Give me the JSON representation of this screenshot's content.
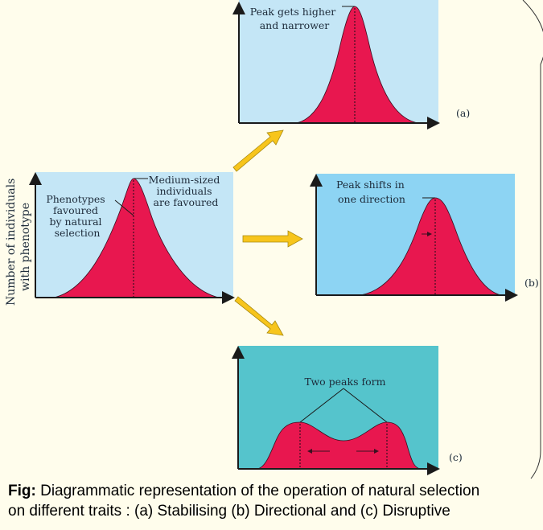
{
  "y_axis_label": [
    "Number of individuals",
    "with phenotype"
  ],
  "original": {
    "label_left": [
      "Phenotypes",
      "favoured",
      "by natural",
      "selection"
    ],
    "label_right": [
      "Medium-sized",
      "individuals",
      "are favoured"
    ]
  },
  "panel_a": {
    "tag": "(a)",
    "label": [
      "Peak gets higher",
      "and narrower"
    ]
  },
  "panel_b": {
    "tag": "(b)",
    "label": [
      "Peak shifts in",
      "one direction"
    ]
  },
  "panel_c": {
    "tag": "(c)",
    "label": "Two peaks form"
  },
  "caption": {
    "prefix": "Fig:",
    "line1": " Diagrammatic representation of the operation of natural selection",
    "line2": "on different traits : (a) Stabilising (b) Directional and (c) Disruptive"
  },
  "colors": {
    "panel_light": "#c4e6f6",
    "panel_b": "#8dd4f3",
    "panel_c": "#55c4cc",
    "curve": "#e8174f",
    "arrow": "#f7c51c"
  }
}
